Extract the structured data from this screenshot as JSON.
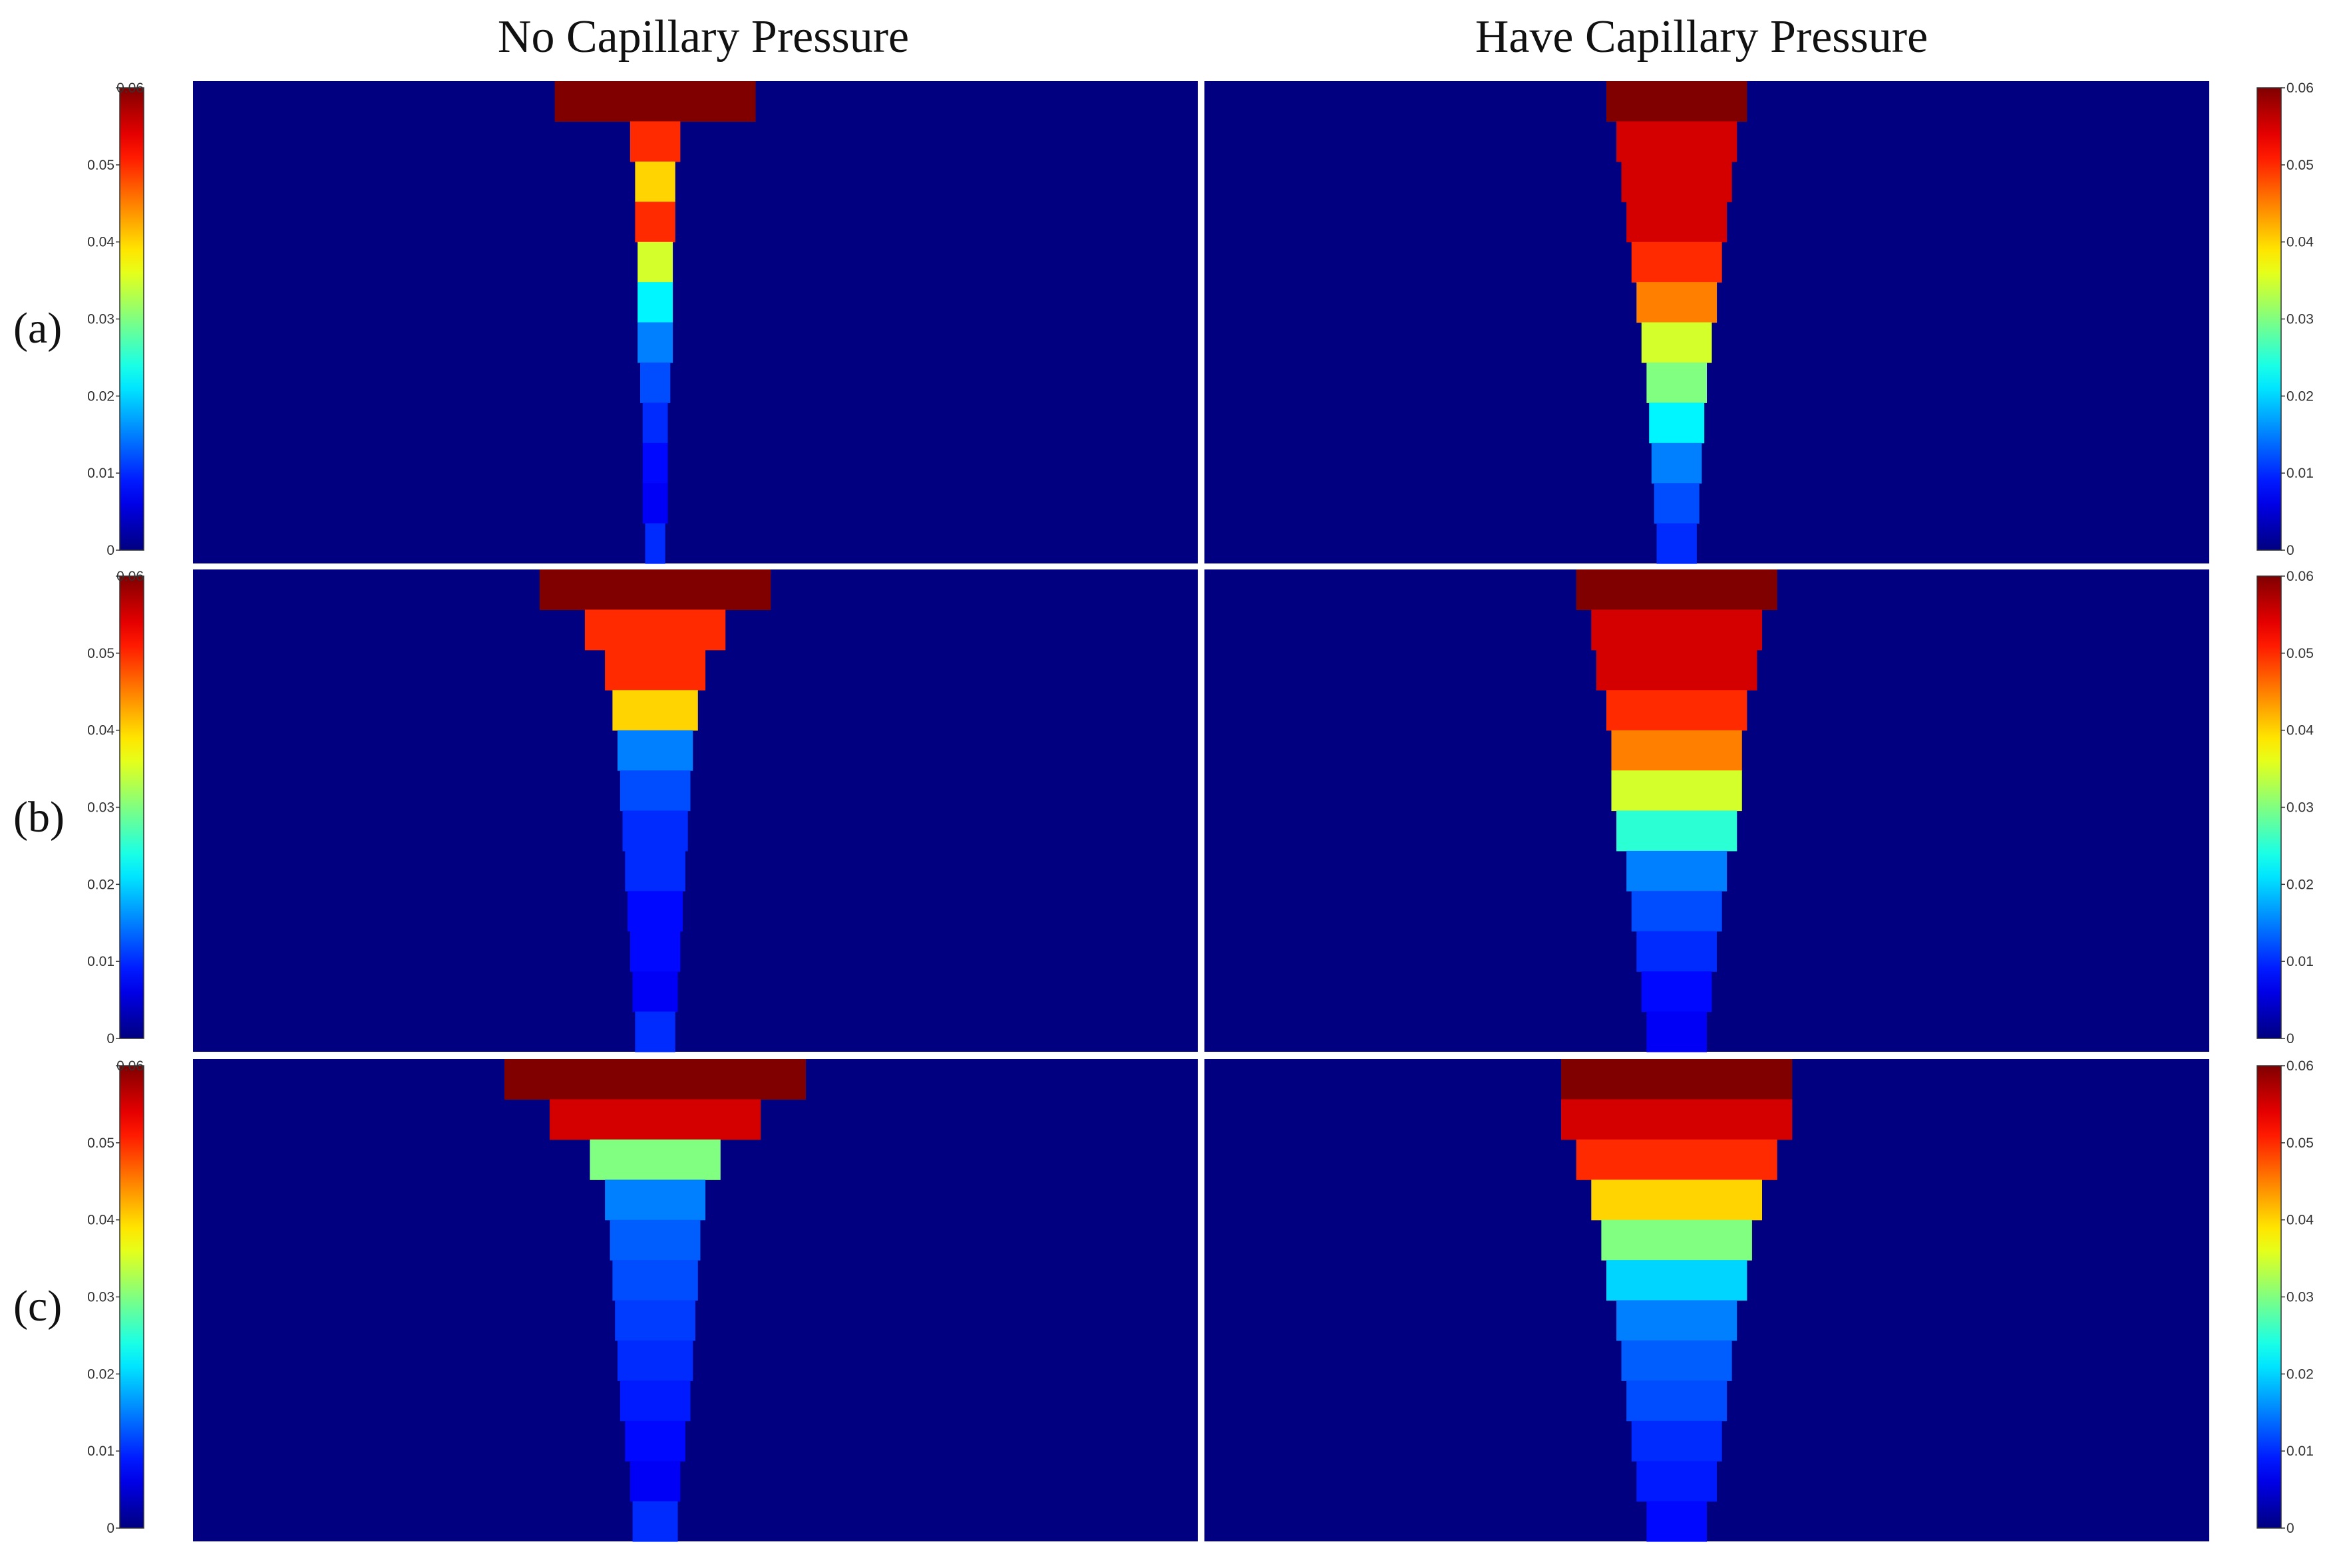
{
  "figure": {
    "column_titles": [
      "No  Capillary Pressure",
      "Have  Capillary Pressure"
    ],
    "row_labels": [
      "(a)",
      "(b)",
      "(c)"
    ]
  },
  "chart_data": {
    "type": "heatmap",
    "colormap": "jet",
    "colorbar": {
      "range": [
        0,
        0.06
      ],
      "ticks": [
        0,
        0.01,
        0.02,
        0.03,
        0.04,
        0.05,
        0.06
      ],
      "tick_labels": [
        "0",
        "0.01",
        "0.02",
        "0.03",
        "0.04",
        "0.05",
        "0.06"
      ]
    },
    "panels": [
      {
        "row": "(a)",
        "column": "No  Capillary Pressure",
        "colorbar_side": "left",
        "depths": [
          0.22,
          0.05,
          0.04,
          0.05,
          0.035,
          0.022,
          0.015,
          0.012,
          0.01,
          0.008,
          0.007,
          0.01
        ],
        "widths": [
          0.2,
          0.05,
          0.04,
          0.04,
          0.035,
          0.035,
          0.035,
          0.03,
          0.025,
          0.025,
          0.025,
          0.02
        ]
      },
      {
        "row": "(a)",
        "column": "Have  Capillary Pressure",
        "colorbar_side": "right",
        "depths": [
          0.22,
          0.055,
          0.055,
          0.055,
          0.05,
          0.045,
          0.035,
          0.03,
          0.022,
          0.015,
          0.012,
          0.01
        ],
        "widths": [
          0.14,
          0.12,
          0.11,
          0.1,
          0.09,
          0.08,
          0.07,
          0.06,
          0.055,
          0.05,
          0.045,
          0.04
        ]
      },
      {
        "row": "(b)",
        "column": "No  Capillary Pressure",
        "colorbar_side": "left",
        "depths": [
          0.25,
          0.05,
          0.05,
          0.04,
          0.015,
          0.012,
          0.01,
          0.01,
          0.008,
          0.008,
          0.007,
          0.01
        ],
        "widths": [
          0.23,
          0.14,
          0.1,
          0.085,
          0.075,
          0.07,
          0.065,
          0.06,
          0.055,
          0.05,
          0.045,
          0.04
        ]
      },
      {
        "row": "(b)",
        "column": "Have  Capillary Pressure",
        "colorbar_side": "right",
        "depths": [
          0.06,
          0.055,
          0.055,
          0.05,
          0.045,
          0.035,
          0.025,
          0.015,
          0.012,
          0.01,
          0.008,
          0.007
        ],
        "widths": [
          0.2,
          0.17,
          0.16,
          0.14,
          0.13,
          0.13,
          0.12,
          0.1,
          0.09,
          0.08,
          0.07,
          0.06
        ]
      },
      {
        "row": "(c)",
        "column": "No  Capillary Pressure",
        "colorbar_side": "left",
        "depths": [
          0.25,
          0.055,
          0.03,
          0.015,
          0.013,
          0.012,
          0.011,
          0.01,
          0.009,
          0.008,
          0.007,
          0.01
        ],
        "widths": [
          0.3,
          0.21,
          0.13,
          0.1,
          0.09,
          0.085,
          0.08,
          0.075,
          0.07,
          0.06,
          0.05,
          0.045
        ]
      },
      {
        "row": "(c)",
        "column": "Have  Capillary Pressure",
        "colorbar_side": "right",
        "depths": [
          0.06,
          0.055,
          0.05,
          0.04,
          0.03,
          0.02,
          0.015,
          0.013,
          0.012,
          0.01,
          0.009,
          0.008
        ],
        "widths": [
          0.23,
          0.23,
          0.2,
          0.17,
          0.15,
          0.14,
          0.12,
          0.11,
          0.1,
          0.09,
          0.08,
          0.06
        ]
      }
    ]
  }
}
